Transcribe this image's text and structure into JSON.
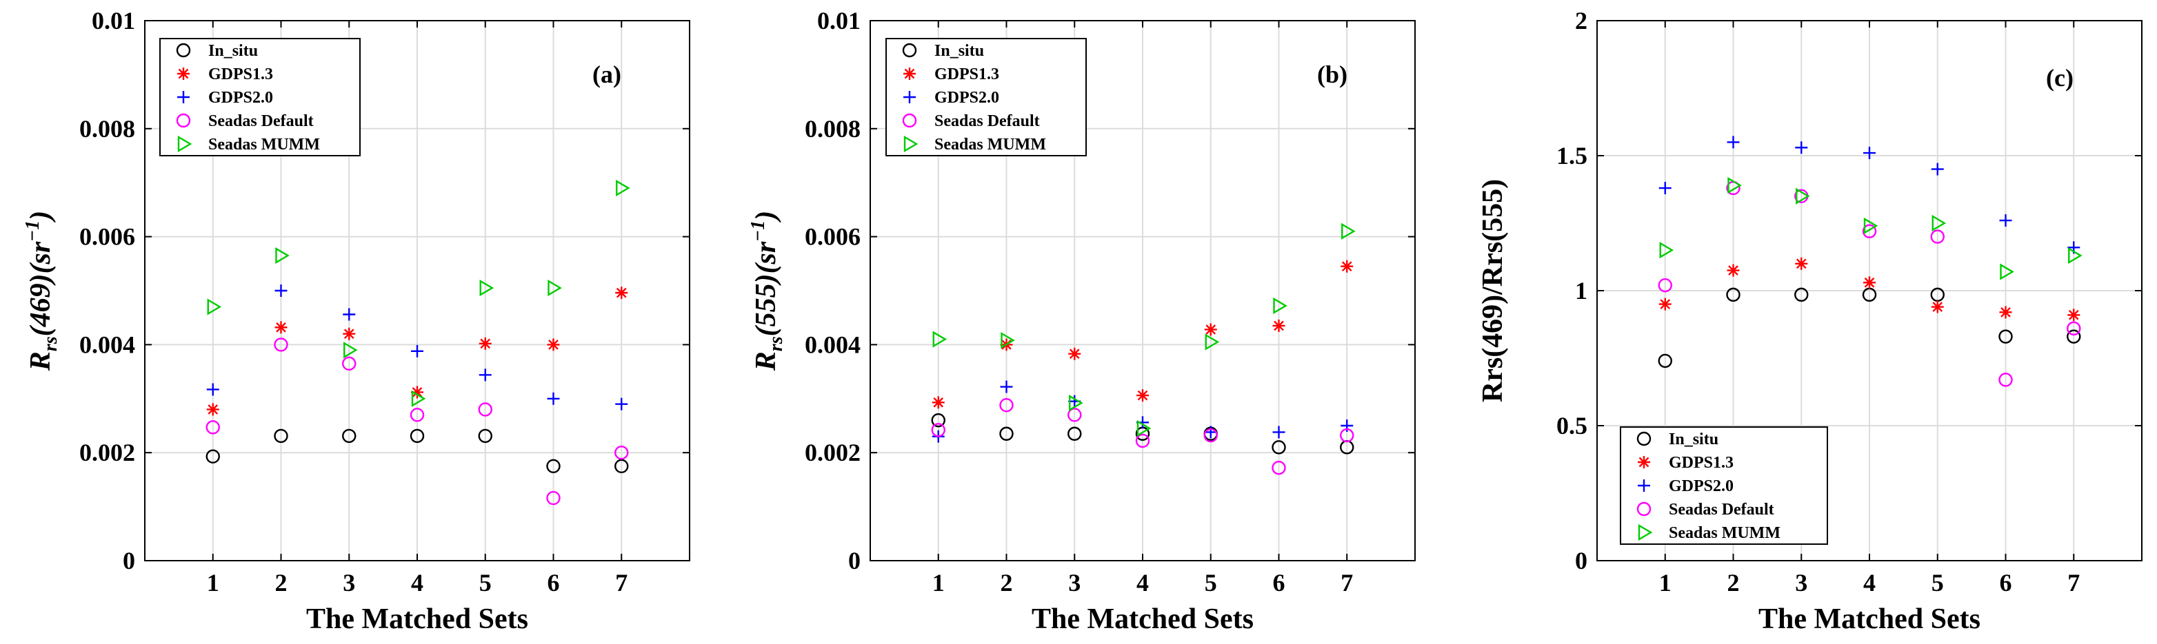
{
  "chart_data": [
    {
      "type": "scatter",
      "panel_label": "(a)",
      "xlabel": "The Matched Sets",
      "ylabel_main": "R",
      "ylabel_sub": "rs",
      "ylabel_rest": "(469)(sr",
      "ylabel_sup": "−1",
      "ylabel_close": ")",
      "x": [
        1,
        2,
        3,
        4,
        5,
        6,
        7
      ],
      "xlim": [
        0,
        8
      ],
      "ylim": [
        0,
        0.01
      ],
      "xticks": [
        "1",
        "2",
        "3",
        "4",
        "5",
        "6",
        "7"
      ],
      "yticks": [
        {
          "value": 0,
          "label": "0"
        },
        {
          "value": 0.002,
          "label": "0.002"
        },
        {
          "value": 0.004,
          "label": "0.004"
        },
        {
          "value": 0.006,
          "label": "0.006"
        },
        {
          "value": 0.008,
          "label": "0.008"
        },
        {
          "value": 0.01,
          "label": "0.01"
        }
      ],
      "legend_position": "top-left",
      "series": [
        {
          "name": "In_situ",
          "marker": "circle",
          "color": "#000000",
          "values": [
            0.00193,
            0.00231,
            0.00231,
            0.00231,
            0.00231,
            0.00175,
            0.00175
          ]
        },
        {
          "name": "GDPS1.3",
          "marker": "asterisk",
          "color": "#ff0000",
          "values": [
            0.0028,
            0.00432,
            0.0042,
            0.00312,
            0.00402,
            0.004,
            0.00496
          ]
        },
        {
          "name": "GDPS2.0",
          "marker": "plus",
          "color": "#0000ff",
          "values": [
            0.00317,
            0.005,
            0.00456,
            0.00388,
            0.00344,
            0.003,
            0.0029
          ]
        },
        {
          "name": "Seadas Default",
          "marker": "circle",
          "color": "#ff00ff",
          "values": [
            0.00247,
            0.004,
            0.00365,
            0.0027,
            0.0028,
            0.00116,
            0.002
          ]
        },
        {
          "name": "Seadas MUMM",
          "marker": "triangle-right",
          "color": "#00cc00",
          "values": [
            0.0047,
            0.00565,
            0.0039,
            0.003,
            0.00505,
            0.00505,
            0.0069
          ]
        }
      ]
    },
    {
      "type": "scatter",
      "panel_label": "(b)",
      "xlabel": "The Matched Sets",
      "ylabel_main": "R",
      "ylabel_sub": "rs",
      "ylabel_rest": "(555)(sr",
      "ylabel_sup": "−1",
      "ylabel_close": ")",
      "x": [
        1,
        2,
        3,
        4,
        5,
        6,
        7
      ],
      "xlim": [
        0,
        8
      ],
      "ylim": [
        0,
        0.01
      ],
      "xticks": [
        "1",
        "2",
        "3",
        "4",
        "5",
        "6",
        "7"
      ],
      "yticks": [
        {
          "value": 0,
          "label": "0"
        },
        {
          "value": 0.002,
          "label": "0.002"
        },
        {
          "value": 0.004,
          "label": "0.004"
        },
        {
          "value": 0.006,
          "label": "0.006"
        },
        {
          "value": 0.008,
          "label": "0.008"
        },
        {
          "value": 0.01,
          "label": "0.01"
        }
      ],
      "legend_position": "top-left",
      "series": [
        {
          "name": "In_situ",
          "marker": "circle",
          "color": "#000000",
          "values": [
            0.0026,
            0.00235,
            0.00235,
            0.00235,
            0.00235,
            0.0021,
            0.0021
          ]
        },
        {
          "name": "GDPS1.3",
          "marker": "asterisk",
          "color": "#ff0000",
          "values": [
            0.00293,
            0.004,
            0.00383,
            0.00306,
            0.00428,
            0.00435,
            0.00545
          ]
        },
        {
          "name": "GDPS2.0",
          "marker": "plus",
          "color": "#0000ff",
          "values": [
            0.0023,
            0.00322,
            0.00295,
            0.00256,
            0.00238,
            0.00238,
            0.0025
          ]
        },
        {
          "name": "Seadas Default",
          "marker": "circle",
          "color": "#ff00ff",
          "values": [
            0.00242,
            0.00288,
            0.0027,
            0.00222,
            0.00232,
            0.00172,
            0.00232
          ]
        },
        {
          "name": "Seadas MUMM",
          "marker": "triangle-right",
          "color": "#00cc00",
          "values": [
            0.0041,
            0.00408,
            0.00292,
            0.00245,
            0.00405,
            0.00472,
            0.0061
          ]
        }
      ]
    },
    {
      "type": "scatter",
      "panel_label": "(c)",
      "xlabel": "The Matched Sets",
      "ylabel_main": "Rrs(469)/Rrs(555)",
      "ylabel_sub": "",
      "ylabel_rest": "",
      "ylabel_sup": "",
      "ylabel_close": "",
      "x": [
        1,
        2,
        3,
        4,
        5,
        6,
        7
      ],
      "xlim": [
        0,
        8
      ],
      "ylim": [
        0,
        2
      ],
      "xticks": [
        "1",
        "2",
        "3",
        "4",
        "5",
        "6",
        "7"
      ],
      "yticks": [
        {
          "value": 0,
          "label": "0"
        },
        {
          "value": 0.5,
          "label": "0.5"
        },
        {
          "value": 1,
          "label": "1"
        },
        {
          "value": 1.5,
          "label": "1.5"
        },
        {
          "value": 2,
          "label": "2"
        }
      ],
      "legend_position": "bottom-left",
      "series": [
        {
          "name": "In_situ",
          "marker": "circle",
          "color": "#000000",
          "values": [
            0.74,
            0.985,
            0.985,
            0.985,
            0.985,
            0.83,
            0.83
          ]
        },
        {
          "name": "GDPS1.3",
          "marker": "asterisk",
          "color": "#ff0000",
          "values": [
            0.95,
            1.075,
            1.1,
            1.03,
            0.94,
            0.92,
            0.91
          ]
        },
        {
          "name": "GDPS2.0",
          "marker": "plus",
          "color": "#0000ff",
          "values": [
            1.38,
            1.55,
            1.53,
            1.51,
            1.45,
            1.26,
            1.16
          ]
        },
        {
          "name": "Seadas Default",
          "marker": "circle",
          "color": "#ff00ff",
          "values": [
            1.02,
            1.38,
            1.35,
            1.22,
            1.2,
            0.67,
            0.86
          ]
        },
        {
          "name": "Seadas MUMM",
          "marker": "triangle-right",
          "color": "#00cc00",
          "values": [
            1.15,
            1.39,
            1.35,
            1.24,
            1.25,
            1.07,
            1.13
          ]
        }
      ]
    }
  ]
}
